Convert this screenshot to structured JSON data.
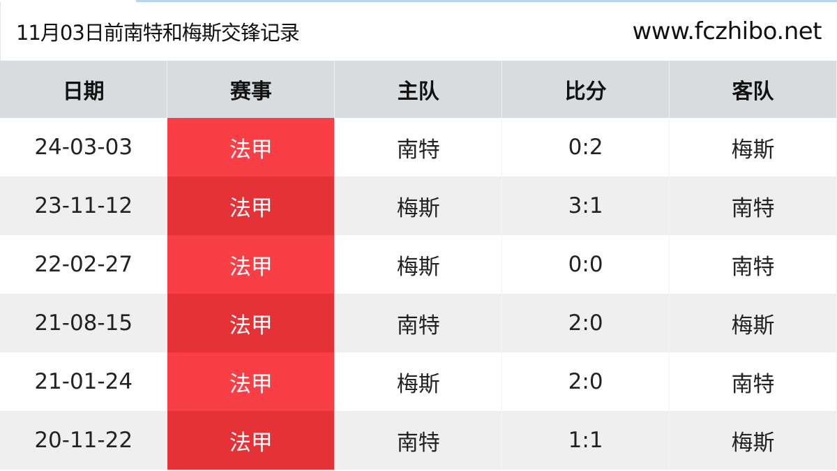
{
  "title": "11月03日前南特和梅斯交锋记录",
  "site": "www.fczhibo.net",
  "colors": {
    "competition_odd": "#f73f45",
    "competition_even": "#e53236",
    "header_bg": "#d9dcde"
  },
  "columns": [
    "日期",
    "赛事",
    "主队",
    "比分",
    "客队"
  ],
  "rows": [
    {
      "date": "24-03-03",
      "competition": "法甲",
      "home": "南特",
      "score": "0:2",
      "away": "梅斯"
    },
    {
      "date": "23-11-12",
      "competition": "法甲",
      "home": "梅斯",
      "score": "3:1",
      "away": "南特"
    },
    {
      "date": "22-02-27",
      "competition": "法甲",
      "home": "梅斯",
      "score": "0:0",
      "away": "南特"
    },
    {
      "date": "21-08-15",
      "competition": "法甲",
      "home": "南特",
      "score": "2:0",
      "away": "梅斯"
    },
    {
      "date": "21-01-24",
      "competition": "法甲",
      "home": "梅斯",
      "score": "2:0",
      "away": "南特"
    },
    {
      "date": "20-11-22",
      "competition": "法甲",
      "home": "南特",
      "score": "1:1",
      "away": "梅斯"
    }
  ]
}
